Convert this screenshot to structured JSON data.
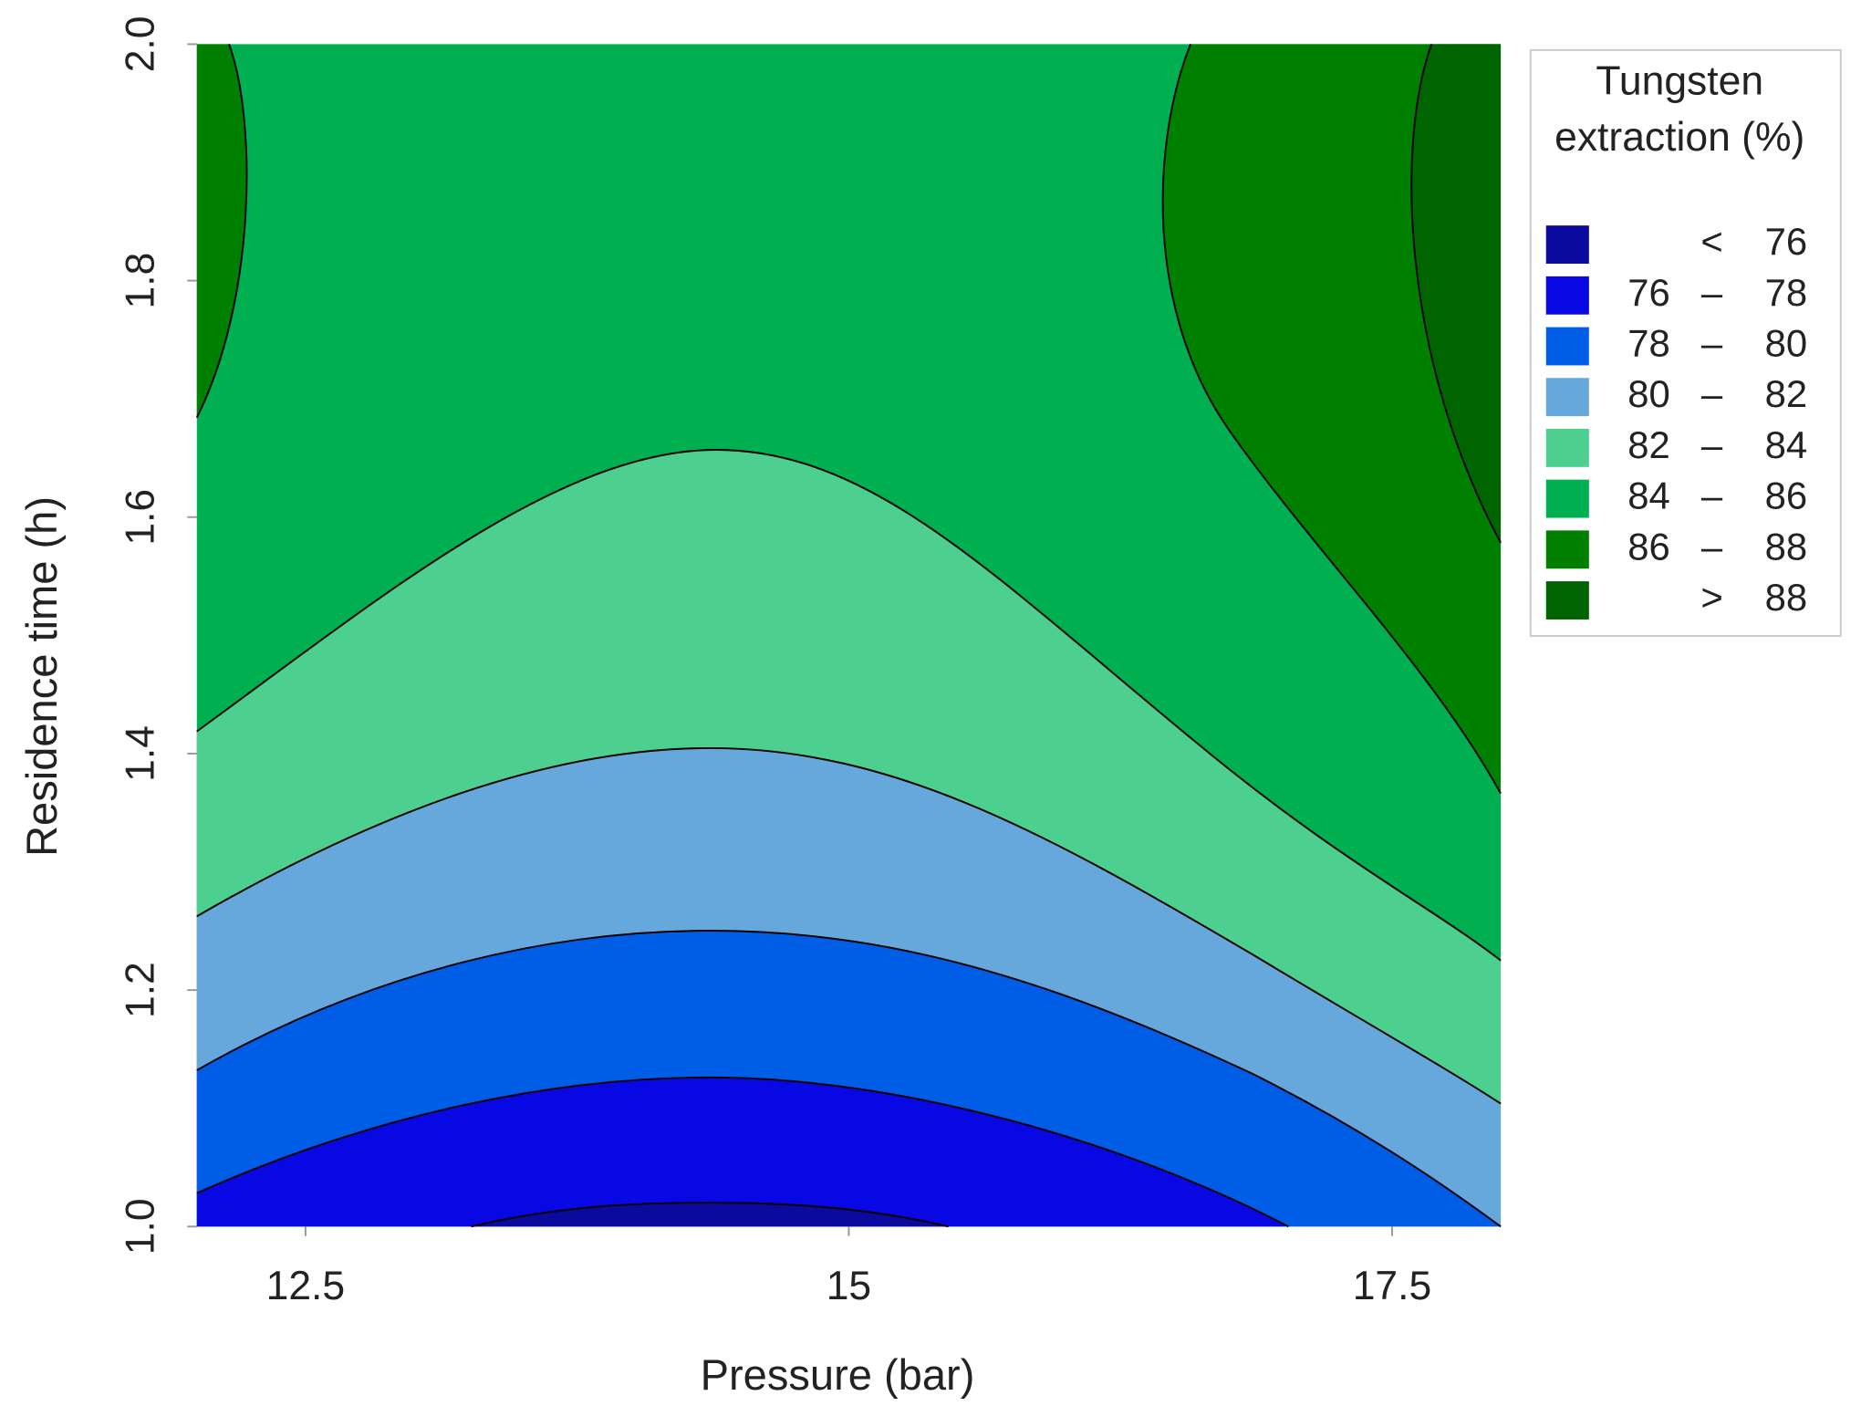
{
  "chart_data": {
    "type": "contour",
    "x_label": "Pressure (bar)",
    "y_label": "Residence time (h)",
    "xlim": [
      12,
      18
    ],
    "xticks": [
      12.5,
      15,
      17.5
    ],
    "ylim": [
      1,
      2
    ],
    "yticks": [
      {
        "value": 1,
        "label": "1.0"
      },
      1.2,
      1.4,
      1.6,
      1.8,
      {
        "value": 2,
        "label": "2.0"
      }
    ],
    "legend_title": [
      "Tungsten",
      "extraction (%)"
    ],
    "separator": "–",
    "bands": [
      {
        "label": "<",
        "high": 76,
        "color": "#0a0a9e"
      },
      {
        "low": 76,
        "high": 78,
        "color": "#0808e4"
      },
      {
        "low": 78,
        "high": 80,
        "color": "#005de6"
      },
      {
        "low": 80,
        "high": 82,
        "color": "#66a8dc"
      },
      {
        "low": 82,
        "high": 84,
        "color": "#4ccf8f"
      },
      {
        "low": 84,
        "high": 86,
        "color": "#00b050"
      },
      {
        "low": 86,
        "high": 88,
        "color": "#008000"
      },
      {
        "label": ">",
        "low": 88,
        "color": "#006400"
      }
    ]
  }
}
